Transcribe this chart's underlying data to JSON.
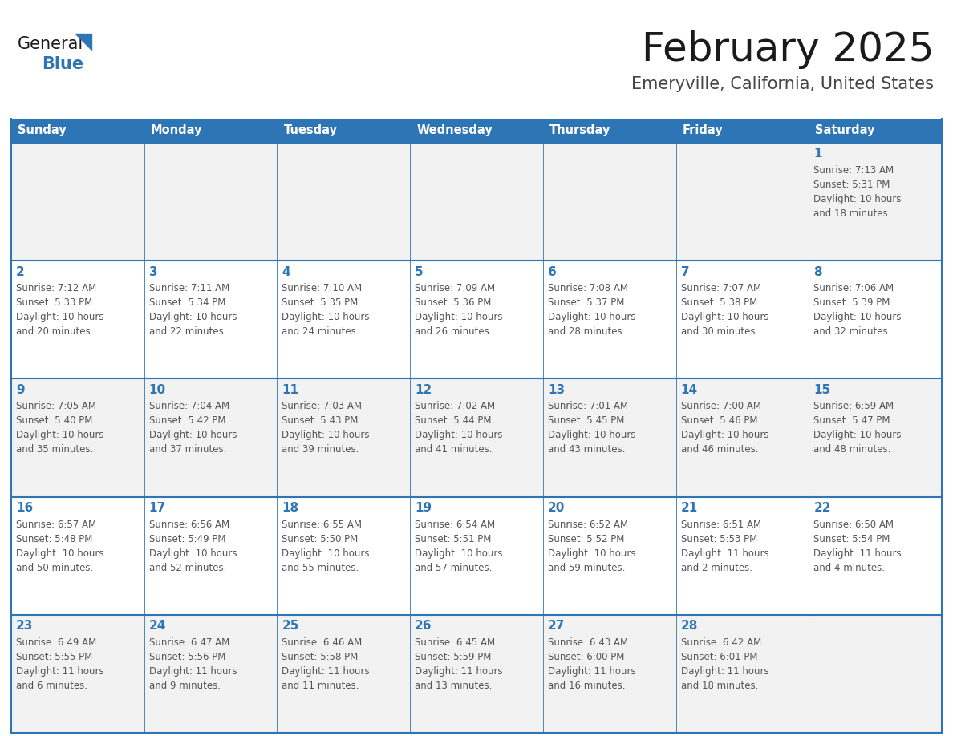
{
  "title": "February 2025",
  "subtitle": "Emeryville, California, United States",
  "header_bg_color": "#2e75b6",
  "header_text_color": "#ffffff",
  "cell_bg_color": "#ffffff",
  "cell_alt_bg_color": "#f2f2f2",
  "cell_border_color": "#2e75b6",
  "day_number_color": "#2e75b6",
  "cell_text_color": "#555555",
  "days_of_week": [
    "Sunday",
    "Monday",
    "Tuesday",
    "Wednesday",
    "Thursday",
    "Friday",
    "Saturday"
  ],
  "weeks": [
    [
      {
        "day": "",
        "text": ""
      },
      {
        "day": "",
        "text": ""
      },
      {
        "day": "",
        "text": ""
      },
      {
        "day": "",
        "text": ""
      },
      {
        "day": "",
        "text": ""
      },
      {
        "day": "",
        "text": ""
      },
      {
        "day": "1",
        "text": "Sunrise: 7:13 AM\nSunset: 5:31 PM\nDaylight: 10 hours\nand 18 minutes."
      }
    ],
    [
      {
        "day": "2",
        "text": "Sunrise: 7:12 AM\nSunset: 5:33 PM\nDaylight: 10 hours\nand 20 minutes."
      },
      {
        "day": "3",
        "text": "Sunrise: 7:11 AM\nSunset: 5:34 PM\nDaylight: 10 hours\nand 22 minutes."
      },
      {
        "day": "4",
        "text": "Sunrise: 7:10 AM\nSunset: 5:35 PM\nDaylight: 10 hours\nand 24 minutes."
      },
      {
        "day": "5",
        "text": "Sunrise: 7:09 AM\nSunset: 5:36 PM\nDaylight: 10 hours\nand 26 minutes."
      },
      {
        "day": "6",
        "text": "Sunrise: 7:08 AM\nSunset: 5:37 PM\nDaylight: 10 hours\nand 28 minutes."
      },
      {
        "day": "7",
        "text": "Sunrise: 7:07 AM\nSunset: 5:38 PM\nDaylight: 10 hours\nand 30 minutes."
      },
      {
        "day": "8",
        "text": "Sunrise: 7:06 AM\nSunset: 5:39 PM\nDaylight: 10 hours\nand 32 minutes."
      }
    ],
    [
      {
        "day": "9",
        "text": "Sunrise: 7:05 AM\nSunset: 5:40 PM\nDaylight: 10 hours\nand 35 minutes."
      },
      {
        "day": "10",
        "text": "Sunrise: 7:04 AM\nSunset: 5:42 PM\nDaylight: 10 hours\nand 37 minutes."
      },
      {
        "day": "11",
        "text": "Sunrise: 7:03 AM\nSunset: 5:43 PM\nDaylight: 10 hours\nand 39 minutes."
      },
      {
        "day": "12",
        "text": "Sunrise: 7:02 AM\nSunset: 5:44 PM\nDaylight: 10 hours\nand 41 minutes."
      },
      {
        "day": "13",
        "text": "Sunrise: 7:01 AM\nSunset: 5:45 PM\nDaylight: 10 hours\nand 43 minutes."
      },
      {
        "day": "14",
        "text": "Sunrise: 7:00 AM\nSunset: 5:46 PM\nDaylight: 10 hours\nand 46 minutes."
      },
      {
        "day": "15",
        "text": "Sunrise: 6:59 AM\nSunset: 5:47 PM\nDaylight: 10 hours\nand 48 minutes."
      }
    ],
    [
      {
        "day": "16",
        "text": "Sunrise: 6:57 AM\nSunset: 5:48 PM\nDaylight: 10 hours\nand 50 minutes."
      },
      {
        "day": "17",
        "text": "Sunrise: 6:56 AM\nSunset: 5:49 PM\nDaylight: 10 hours\nand 52 minutes."
      },
      {
        "day": "18",
        "text": "Sunrise: 6:55 AM\nSunset: 5:50 PM\nDaylight: 10 hours\nand 55 minutes."
      },
      {
        "day": "19",
        "text": "Sunrise: 6:54 AM\nSunset: 5:51 PM\nDaylight: 10 hours\nand 57 minutes."
      },
      {
        "day": "20",
        "text": "Sunrise: 6:52 AM\nSunset: 5:52 PM\nDaylight: 10 hours\nand 59 minutes."
      },
      {
        "day": "21",
        "text": "Sunrise: 6:51 AM\nSunset: 5:53 PM\nDaylight: 11 hours\nand 2 minutes."
      },
      {
        "day": "22",
        "text": "Sunrise: 6:50 AM\nSunset: 5:54 PM\nDaylight: 11 hours\nand 4 minutes."
      }
    ],
    [
      {
        "day": "23",
        "text": "Sunrise: 6:49 AM\nSunset: 5:55 PM\nDaylight: 11 hours\nand 6 minutes."
      },
      {
        "day": "24",
        "text": "Sunrise: 6:47 AM\nSunset: 5:56 PM\nDaylight: 11 hours\nand 9 minutes."
      },
      {
        "day": "25",
        "text": "Sunrise: 6:46 AM\nSunset: 5:58 PM\nDaylight: 11 hours\nand 11 minutes."
      },
      {
        "day": "26",
        "text": "Sunrise: 6:45 AM\nSunset: 5:59 PM\nDaylight: 11 hours\nand 13 minutes."
      },
      {
        "day": "27",
        "text": "Sunrise: 6:43 AM\nSunset: 6:00 PM\nDaylight: 11 hours\nand 16 minutes."
      },
      {
        "day": "28",
        "text": "Sunrise: 6:42 AM\nSunset: 6:01 PM\nDaylight: 11 hours\nand 18 minutes."
      },
      {
        "day": "",
        "text": ""
      }
    ]
  ],
  "logo_text_general": "General",
  "logo_text_blue": "Blue",
  "logo_triangle_color": "#2e75b6",
  "logo_general_color": "#1a1a1a",
  "logo_blue_color": "#2e75b6",
  "title_color": "#1a1a1a",
  "subtitle_color": "#444444"
}
